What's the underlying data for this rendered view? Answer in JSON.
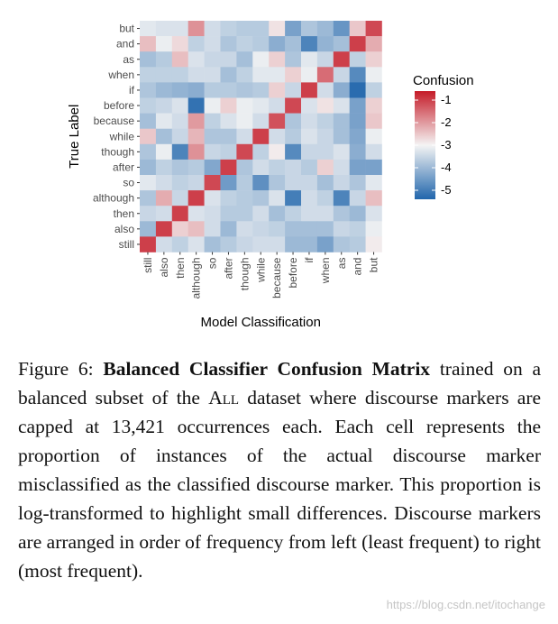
{
  "chart_data": {
    "type": "heatmap",
    "title": "",
    "xlabel": "Model Classification",
    "ylabel": "True Label",
    "x_categories": [
      "still",
      "also",
      "then",
      "although",
      "so",
      "after",
      "though",
      "while",
      "because",
      "before",
      "if",
      "when",
      "as",
      "and",
      "but"
    ],
    "y_categories": [
      "but",
      "and",
      "as",
      "when",
      "if",
      "before",
      "because",
      "while",
      "though",
      "after",
      "so",
      "although",
      "then",
      "also",
      "still"
    ],
    "legend": {
      "title": "Confusion",
      "position": "right",
      "ticks": [
        "-1",
        "-2",
        "-3",
        "-4",
        "-5"
      ],
      "tick_values": [
        -1,
        -2,
        -3,
        -4,
        -5
      ],
      "range": [
        -5.4,
        -0.6
      ],
      "colors": {
        "high": "#c51b28",
        "mid": "#f4f4f4",
        "low": "#2166ac"
      }
    },
    "values": [
      [
        -3.2,
        -3.3,
        -3.3,
        -1.9,
        -3.4,
        -3.6,
        -3.7,
        -3.7,
        -2.8,
        -4.4,
        -3.8,
        -4.0,
        -4.6,
        -2.5,
        -1.1
      ],
      [
        -2.4,
        -3.1,
        -2.7,
        -3.6,
        -3.4,
        -3.8,
        -3.6,
        -3.7,
        -4.2,
        -3.9,
        -4.9,
        -4.1,
        -3.9,
        -1.0,
        -2.2
      ],
      [
        -3.9,
        -3.7,
        -2.4,
        -3.3,
        -3.5,
        -3.5,
        -3.9,
        -3.1,
        -2.6,
        -3.8,
        -3.2,
        -3.5,
        -1.0,
        -3.6,
        -2.6
      ],
      [
        -3.6,
        -3.6,
        -3.6,
        -3.4,
        -3.4,
        -3.9,
        -3.6,
        -3.2,
        -3.2,
        -2.6,
        -3.1,
        -1.5,
        -3.5,
        -4.8,
        -3.1
      ],
      [
        -3.8,
        -4.0,
        -4.1,
        -4.2,
        -3.7,
        -3.7,
        -3.8,
        -3.7,
        -2.6,
        -3.5,
        -1.0,
        -3.4,
        -4.2,
        -5.3,
        -3.6
      ],
      [
        -3.6,
        -3.5,
        -3.3,
        -5.2,
        -3.1,
        -2.6,
        -3.1,
        -3.2,
        -3.4,
        -1.1,
        -3.3,
        -2.8,
        -3.3,
        -4.4,
        -2.6
      ],
      [
        -3.9,
        -3.2,
        -3.4,
        -2.0,
        -3.6,
        -3.3,
        -3.1,
        -3.4,
        -1.2,
        -3.8,
        -3.4,
        -3.6,
        -3.9,
        -4.4,
        -2.5
      ],
      [
        -2.5,
        -3.9,
        -3.5,
        -2.3,
        -3.8,
        -3.8,
        -3.4,
        -1.0,
        -3.4,
        -3.7,
        -3.3,
        -3.5,
        -3.9,
        -4.3,
        -3.1
      ],
      [
        -3.8,
        -3.1,
        -4.9,
        -1.9,
        -3.5,
        -3.6,
        -1.1,
        -3.6,
        -2.9,
        -4.8,
        -3.5,
        -3.5,
        -3.3,
        -4.2,
        -3.4
      ],
      [
        -4.0,
        -3.6,
        -3.8,
        -3.7,
        -4.3,
        -1.0,
        -3.8,
        -3.4,
        -3.6,
        -3.5,
        -3.7,
        -2.6,
        -3.4,
        -4.4,
        -4.4
      ],
      [
        -3.2,
        -3.4,
        -3.6,
        -3.5,
        -1.1,
        -4.5,
        -3.7,
        -4.7,
        -3.8,
        -3.5,
        -3.5,
        -3.9,
        -3.5,
        -3.8,
        -3.2
      ],
      [
        -3.8,
        -2.2,
        -3.5,
        -1.0,
        -3.3,
        -3.6,
        -3.7,
        -3.8,
        -3.3,
        -5.0,
        -3.4,
        -3.6,
        -4.9,
        -3.5,
        -2.4
      ],
      [
        -3.5,
        -3.4,
        -1.0,
        -3.3,
        -3.4,
        -3.7,
        -3.7,
        -3.4,
        -3.9,
        -3.6,
        -3.4,
        -3.4,
        -3.8,
        -4.0,
        -3.3
      ],
      [
        -4.0,
        -1.0,
        -2.6,
        -2.4,
        -3.4,
        -4.0,
        -3.4,
        -3.5,
        -3.6,
        -3.9,
        -3.9,
        -3.9,
        -3.5,
        -3.6,
        -3.1
      ],
      [
        -1.0,
        -3.4,
        -3.6,
        -3.3,
        -3.9,
        -3.7,
        -3.5,
        -3.4,
        -3.4,
        -4.0,
        -4.0,
        -4.4,
        -3.8,
        -3.7,
        -2.9
      ]
    ]
  },
  "caption": {
    "label": "Figure 6:",
    "title": "Balanced Classifier Confusion Matrix",
    "text_before": "trained on a balanced subset of the",
    "smallcaps": "All",
    "text_after": "dataset where discourse markers are capped at 13,421 occurrences each.  Each cell represents the proportion of instances of the actual discourse marker misclassified as the classified discourse marker.  This proportion is log-transformed to highlight small differences.  Discourse markers are arranged in order of frequency from left (least frequent) to right (most frequent)."
  },
  "watermark": "https://blog.csdn.net/itochange"
}
